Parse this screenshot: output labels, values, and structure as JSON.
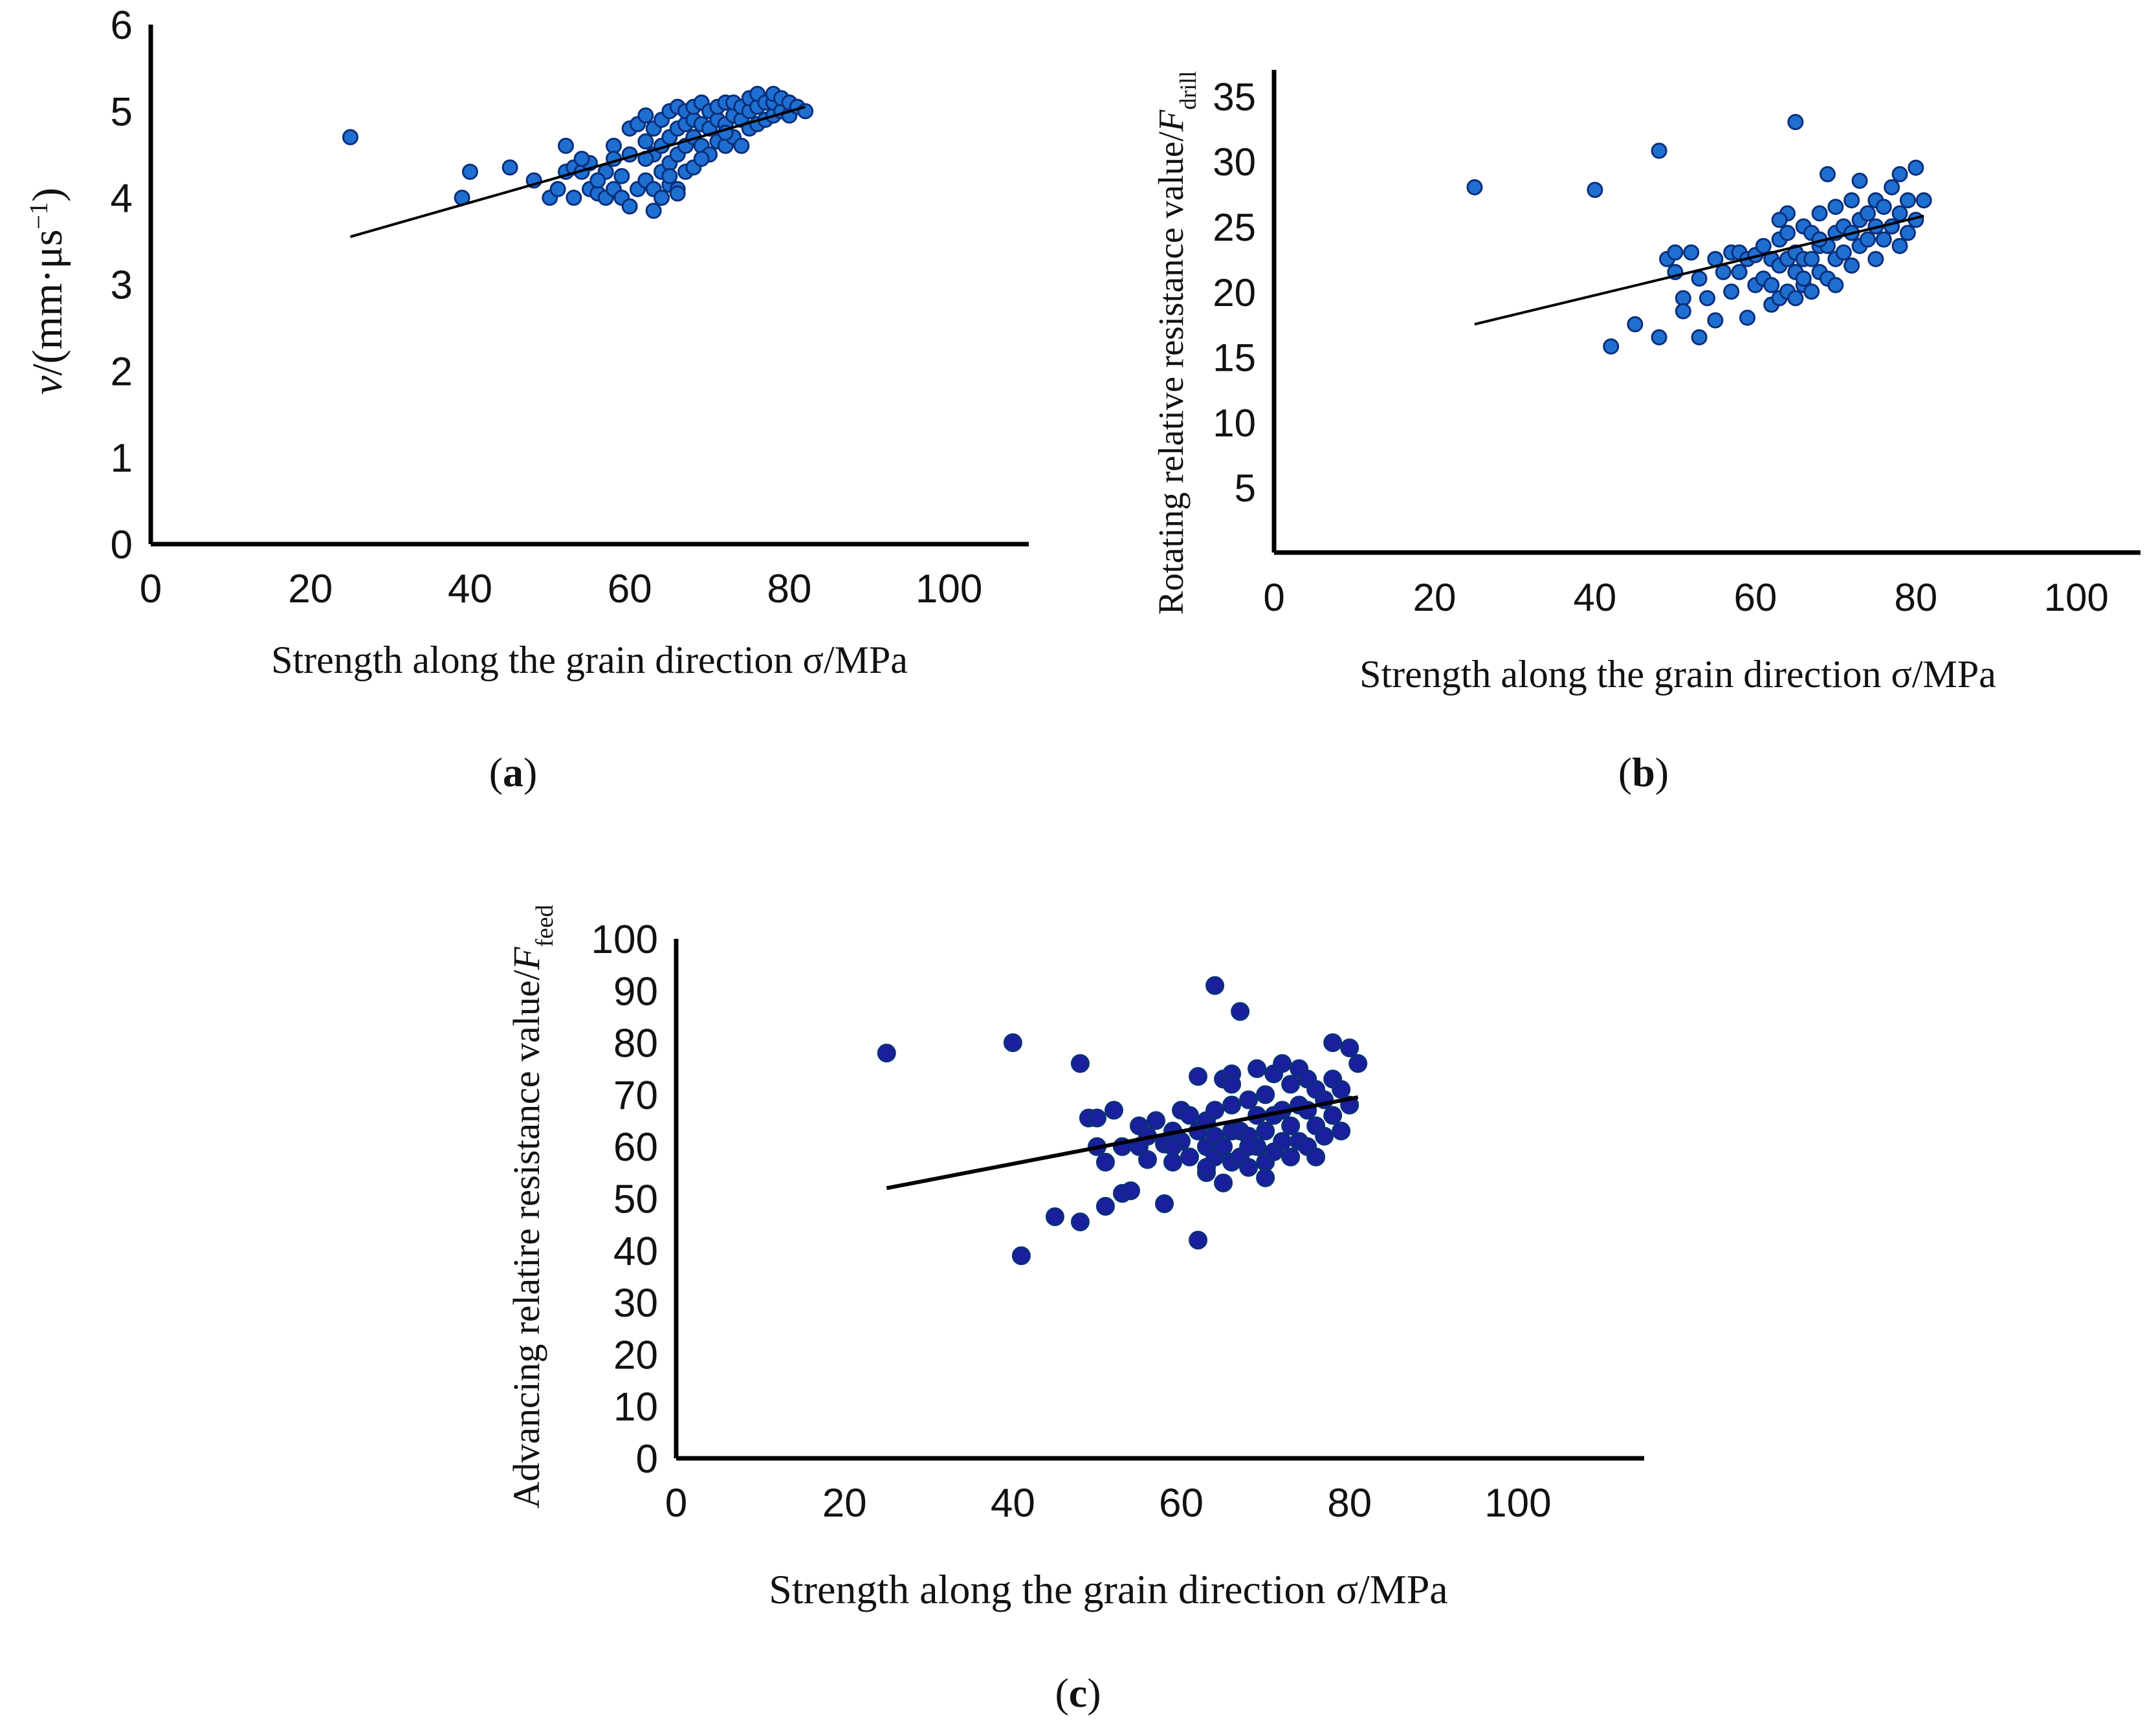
{
  "colors": {
    "point_blue": "#1f6fd1",
    "point_navy": "#1a1f9e",
    "point_edge": "#0b2f7a",
    "axis": "#000000",
    "fit": "#000000"
  },
  "chart_data": [
    {
      "type": "scatter",
      "panel": "(a)",
      "panel_letter": "a",
      "xlabel": "Strength along the grain direction σ/MPa",
      "ylabel_italic": "v",
      "ylabel_rest": "/(mm·μs",
      "ylabel_sup": "−1",
      "ylabel_close": ")",
      "xlim": [
        0,
        110
      ],
      "ylim": [
        0,
        6
      ],
      "xticks": [
        0,
        20,
        40,
        60,
        80,
        100
      ],
      "yticks": [
        0,
        1,
        2,
        3,
        4,
        5,
        6
      ],
      "point_color": "#1f6fd1",
      "fit_line": {
        "x": [
          25,
          82
        ],
        "y": [
          3.55,
          5.05
        ]
      },
      "x": [
        25,
        39,
        40,
        45,
        48,
        50,
        51,
        52,
        52,
        53,
        53,
        54,
        55,
        55,
        56,
        57,
        57,
        58,
        58,
        59,
        59,
        60,
        60,
        60,
        61,
        61,
        62,
        62,
        62,
        63,
        63,
        63,
        63,
        64,
        64,
        64,
        64,
        65,
        65,
        65,
        65,
        66,
        66,
        66,
        66,
        67,
        67,
        67,
        67,
        68,
        68,
        68,
        68,
        69,
        69,
        69,
        70,
        70,
        70,
        71,
        71,
        71,
        72,
        72,
        72,
        73,
        73,
        73,
        74,
        74,
        74,
        75,
        75,
        75,
        76,
        76,
        76,
        77,
        77,
        78,
        78,
        78,
        79,
        79,
        80,
        80,
        81,
        82,
        65,
        66,
        69,
        72,
        62,
        58,
        56,
        54
      ],
      "y": [
        4.7,
        4.0,
        4.3,
        4.35,
        4.2,
        4.0,
        4.1,
        4.6,
        4.3,
        4.0,
        4.35,
        4.3,
        4.1,
        4.4,
        4.05,
        4.0,
        4.3,
        4.1,
        4.6,
        4.0,
        4.25,
        3.9,
        4.5,
        4.8,
        4.1,
        4.85,
        4.2,
        4.65,
        4.95,
        3.85,
        4.1,
        4.5,
        4.8,
        4.0,
        4.3,
        4.6,
        4.9,
        4.15,
        4.4,
        4.7,
        5.0,
        4.1,
        4.5,
        4.8,
        5.05,
        4.3,
        4.6,
        4.85,
        5.0,
        4.35,
        4.7,
        4.9,
        5.05,
        4.6,
        4.85,
        5.1,
        4.5,
        4.8,
        5.0,
        4.65,
        4.9,
        5.05,
        4.6,
        4.85,
        5.1,
        4.7,
        4.95,
        5.1,
        4.6,
        4.9,
        5.05,
        4.8,
        5.0,
        5.15,
        4.85,
        5.05,
        5.2,
        4.9,
        5.1,
        4.95,
        5.1,
        5.2,
        5.0,
        5.15,
        4.95,
        5.1,
        5.05,
        5.0,
        4.25,
        4.05,
        4.45,
        4.75,
        4.45,
        4.45,
        4.2,
        4.45
      ]
    },
    {
      "type": "scatter",
      "panel": "(b)",
      "panel_letter": "b",
      "xlabel": "Strength along the grain direction σ/MPa",
      "ylabel_prefix": "Rotating relative resistance value/",
      "ylabel_italic": "F",
      "ylabel_sub": "drill",
      "xlim": [
        0,
        108
      ],
      "ylim": [
        0,
        37
      ],
      "xticks": [
        0,
        20,
        40,
        60,
        80,
        100
      ],
      "yticks": [
        5,
        10,
        15,
        20,
        25,
        30,
        35
      ],
      "point_color": "#1f6fd1",
      "fit_line": {
        "x": [
          25,
          81
        ],
        "y": [
          17.5,
          25.8
        ]
      },
      "x": [
        25,
        40,
        45,
        48,
        48,
        49,
        50,
        50,
        51,
        51,
        52,
        53,
        53,
        54,
        55,
        55,
        56,
        57,
        57,
        58,
        58,
        59,
        59,
        60,
        60,
        61,
        61,
        62,
        62,
        62,
        63,
        63,
        63,
        64,
        64,
        64,
        65,
        65,
        65,
        65,
        66,
        66,
        66,
        67,
        67,
        67,
        68,
        68,
        68,
        69,
        69,
        69,
        70,
        70,
        70,
        71,
        71,
        72,
        72,
        72,
        73,
        73,
        73,
        74,
        74,
        75,
        75,
        75,
        76,
        76,
        77,
        77,
        78,
        78,
        78,
        79,
        79,
        80,
        80,
        81,
        64,
        66,
        68,
        70,
        42,
        63
      ],
      "y": [
        28,
        27.8,
        17.5,
        16.5,
        30.8,
        22.5,
        21.5,
        23,
        19.5,
        18.5,
        23,
        16.5,
        21,
        19.5,
        22.5,
        17.8,
        21.5,
        23,
        20,
        21.5,
        23,
        18,
        22.5,
        20.5,
        22.8,
        21,
        23.5,
        19,
        20.5,
        22.5,
        19.5,
        22,
        24,
        20,
        22.5,
        24.5,
        19.5,
        21.5,
        23,
        33,
        20.5,
        22.5,
        25,
        20,
        22.5,
        24.5,
        21.5,
        23.5,
        26,
        21,
        23.5,
        29,
        22.5,
        24.5,
        26.5,
        23,
        25,
        22,
        24.5,
        27,
        23.5,
        25.5,
        28.5,
        24,
        26,
        22.5,
        25,
        27,
        24,
        26.5,
        25,
        28,
        23.5,
        26,
        29,
        24.5,
        27,
        25.5,
        29.5,
        27,
        26,
        21,
        24,
        20.5,
        15.8,
        25.5
      ]
    },
    {
      "type": "scatter",
      "panel": "(c)",
      "panel_letter": "c",
      "xlabel": "Strength along the grain direction σ/MPa",
      "ylabel_prefix": "Advancing relatire resistance value/",
      "ylabel_italic": "F",
      "ylabel_sub": "feed",
      "xlim": [
        0,
        115
      ],
      "ylim": [
        0,
        100
      ],
      "xticks": [
        0,
        20,
        40,
        60,
        80,
        100
      ],
      "yticks": [
        0,
        10,
        20,
        30,
        40,
        50,
        60,
        70,
        80,
        90,
        100
      ],
      "point_color": "#1a1f9e",
      "fit_line": {
        "x": [
          25,
          81
        ],
        "y": [
          52,
          69.5
        ]
      },
      "x": [
        25,
        40,
        41,
        45,
        48,
        48,
        49,
        50,
        50,
        51,
        51,
        52,
        53,
        53,
        54,
        55,
        55,
        56,
        56,
        57,
        58,
        58,
        59,
        59,
        60,
        60,
        61,
        61,
        62,
        62,
        62,
        63,
        63,
        63,
        64,
        64,
        64,
        64,
        65,
        65,
        65,
        66,
        66,
        66,
        66,
        67,
        67,
        67,
        68,
        68,
        68,
        69,
        69,
        69,
        70,
        70,
        70,
        71,
        71,
        71,
        72,
        72,
        72,
        73,
        73,
        73,
        74,
        74,
        74,
        75,
        75,
        75,
        76,
        76,
        76,
        77,
        77,
        78,
        78,
        78,
        79,
        79,
        80,
        80,
        81,
        63,
        66,
        68,
        70,
        59
      ],
      "y": [
        78,
        80,
        39,
        46.5,
        45.5,
        76,
        65.5,
        60,
        65.5,
        57,
        48.5,
        67,
        51,
        60,
        51.5,
        64,
        60,
        57.5,
        62,
        65,
        49,
        60.5,
        57,
        63,
        61,
        67,
        58,
        66,
        42,
        63,
        73.5,
        55,
        60,
        65,
        58,
        62,
        67,
        91,
        53,
        60,
        73,
        57,
        63,
        68,
        74,
        58,
        63,
        86,
        56,
        62,
        69,
        60,
        66,
        75,
        57,
        63,
        70,
        59,
        66,
        74,
        61,
        67,
        76,
        58,
        64,
        72,
        61,
        68,
        75,
        60,
        67,
        73,
        58,
        64,
        71,
        62,
        69,
        66,
        73,
        80,
        63,
        71,
        68,
        79,
        76,
        56,
        72,
        60,
        54,
        60
      ]
    }
  ]
}
